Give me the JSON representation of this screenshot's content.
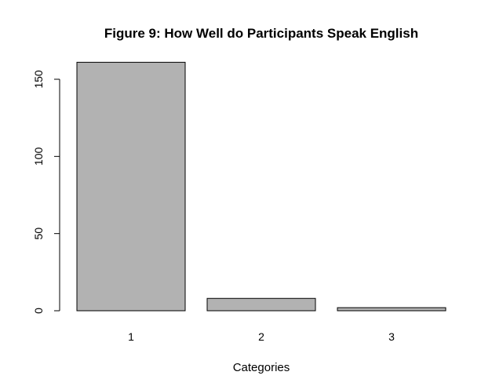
{
  "chart_data": {
    "type": "bar",
    "title": "Figure 9: How Well do Participants Speak English",
    "xlabel": "Categories",
    "ylabel": "",
    "categories": [
      "1",
      "2",
      "3"
    ],
    "values": [
      161,
      8,
      2
    ],
    "ylim": [
      0,
      161
    ],
    "yticks": [
      0,
      50,
      100,
      150
    ],
    "grid": false,
    "legend": "none",
    "colors": {
      "bar_fill": "#b2b2b2",
      "bar_stroke": "#000000"
    }
  }
}
